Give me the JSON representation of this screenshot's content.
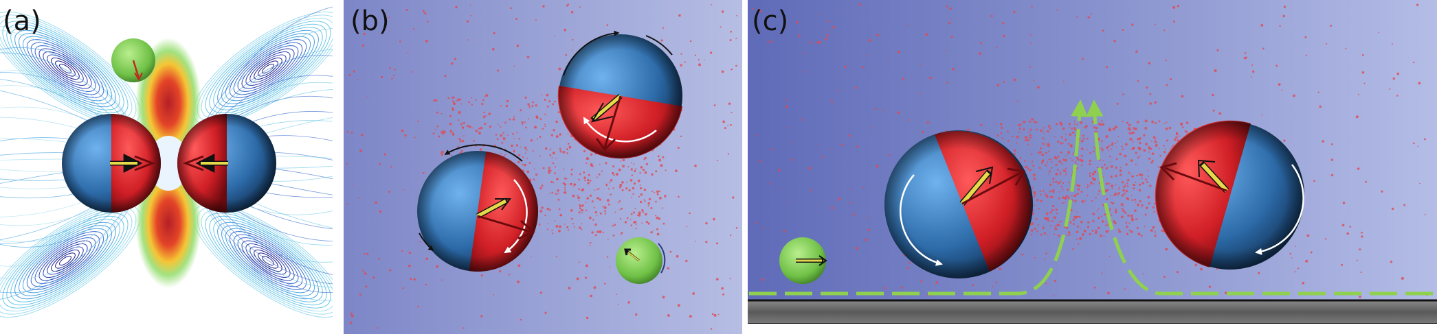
{
  "figure": {
    "panels": [
      {
        "id": "a",
        "label": "(a)",
        "description": "flow-field",
        "particles": [
          {
            "kind": "janus",
            "left_half": "blue",
            "right_half": "red"
          },
          {
            "kind": "janus",
            "left_half": "red",
            "right_half": "blue"
          },
          {
            "kind": "passive",
            "color": "green"
          }
        ]
      },
      {
        "id": "b",
        "label": "(b)",
        "particles": [
          {
            "kind": "janus"
          },
          {
            "kind": "janus"
          },
          {
            "kind": "passive",
            "color": "green"
          }
        ]
      },
      {
        "id": "c",
        "label": "(c)",
        "particles": [
          {
            "kind": "janus"
          },
          {
            "kind": "janus"
          },
          {
            "kind": "passive",
            "color": "green"
          }
        ],
        "wall": true
      }
    ],
    "colors": {
      "janus_red": "#d4242b",
      "janus_blue": "#3a7fc0",
      "passive_green": "#7ccb4e",
      "arrow_yellow": "#e6d94a",
      "flow_green": "#8fd14f",
      "background_purple": "#7b86c6",
      "dot_red": "#e04a52"
    }
  }
}
